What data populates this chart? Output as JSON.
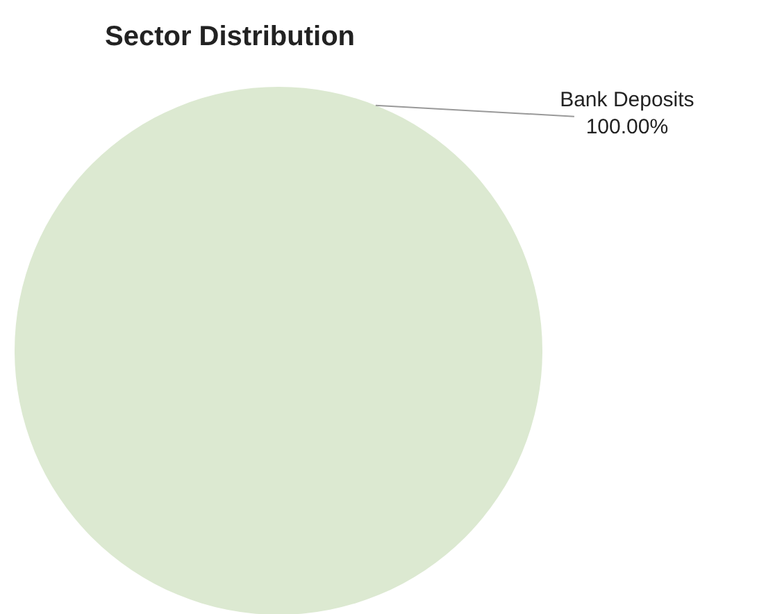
{
  "chart_data": {
    "type": "pie",
    "title": "Sector Distribution",
    "categories": [
      "Bank Deposits"
    ],
    "values": [
      100
    ],
    "colors": [
      "#dce9d1"
    ],
    "value_labels": [
      "100.00%"
    ]
  }
}
